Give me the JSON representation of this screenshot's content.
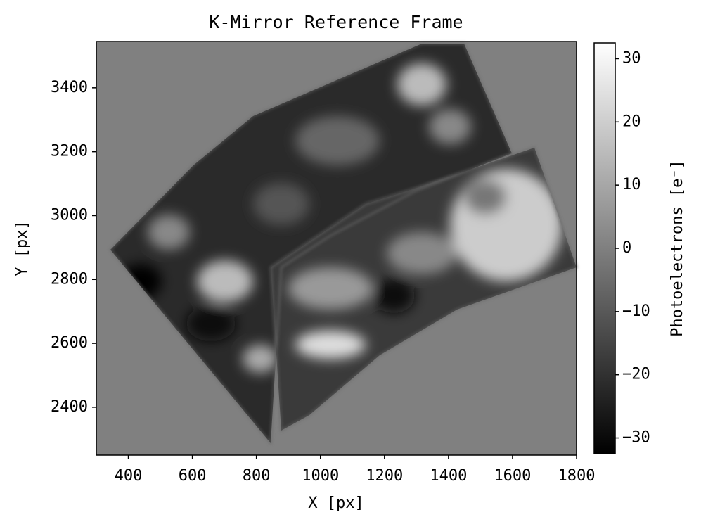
{
  "chart_data": {
    "type": "image",
    "title": "K-Mirror Reference Frame",
    "xlabel": "X [px]",
    "ylabel": "Y [px]",
    "xlim": [
      300,
      1800
    ],
    "ylim": [
      2250,
      3545
    ],
    "xticks": [
      400,
      600,
      800,
      1000,
      1200,
      1400,
      1600,
      1800
    ],
    "yticks": [
      2400,
      2600,
      2800,
      3000,
      3200,
      3400
    ],
    "colormap": "gray",
    "colorbar_label": "Photoelectrons [e⁻]",
    "clim": [
      -32.5,
      32.5
    ],
    "cticks": [
      {
        "value": -30,
        "label": "−30"
      },
      {
        "value": -20,
        "label": "−20"
      },
      {
        "value": -10,
        "label": "−10"
      },
      0,
      10,
      20,
      30
    ]
  }
}
